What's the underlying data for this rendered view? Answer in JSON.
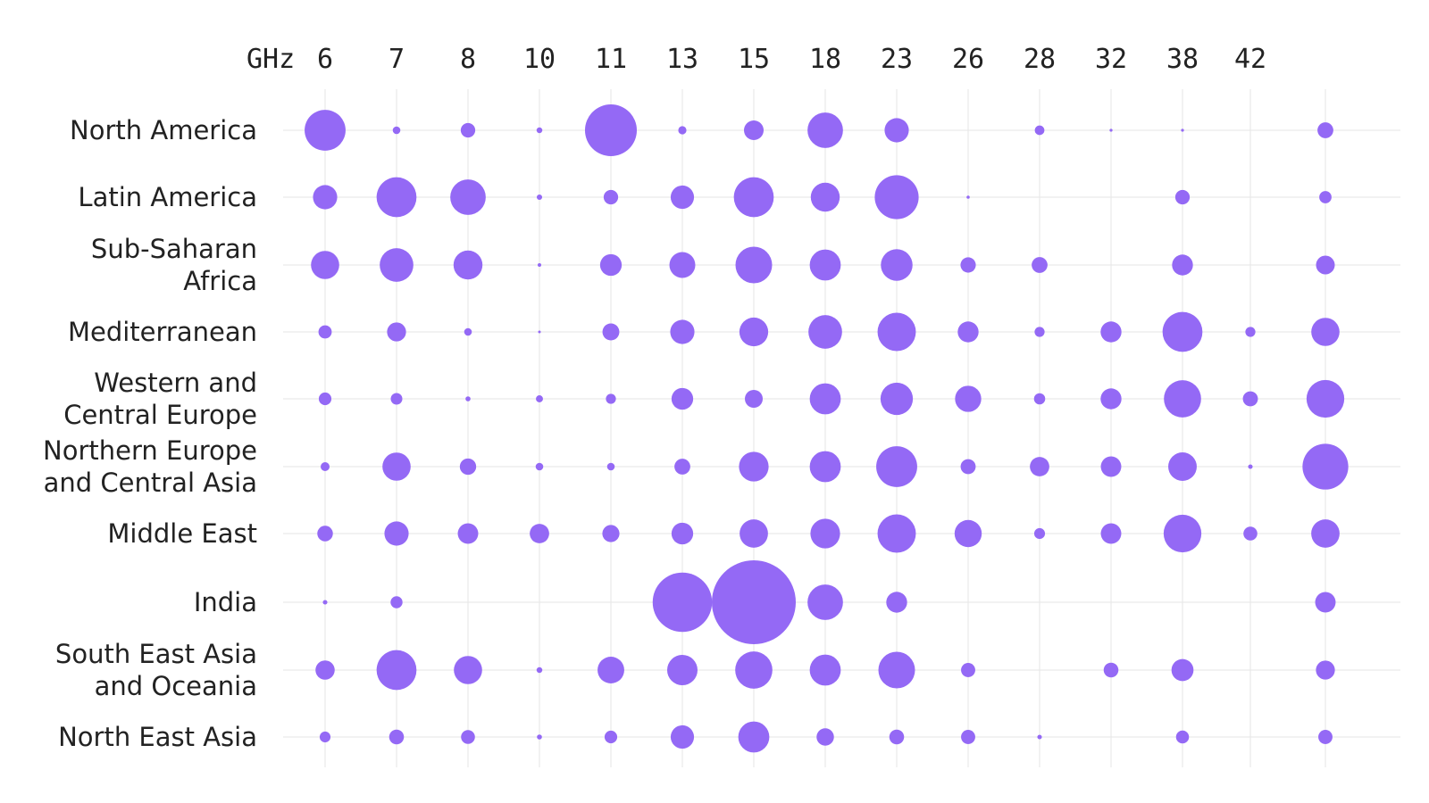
{
  "chart_data": {
    "type": "bubble-matrix",
    "unit_label": "GHz",
    "columns": [
      "6",
      "7",
      "8",
      "10",
      "11",
      "13",
      "15",
      "18",
      "23",
      "26",
      "28",
      "32",
      "38",
      "42",
      ""
    ],
    "rows": [
      {
        "label": [
          "North America"
        ],
        "values": [
          2000,
          70,
          250,
          40,
          3200,
          80,
          460,
          1500,
          700,
          0,
          110,
          10,
          10,
          0,
          300
        ]
      },
      {
        "label": [
          "Latin America"
        ],
        "values": [
          700,
          1900,
          1500,
          35,
          250,
          650,
          1900,
          1000,
          2300,
          12,
          0,
          0,
          250,
          0,
          180
        ]
      },
      {
        "label": [
          "Sub-Saharan",
          "Africa"
        ],
        "values": [
          950,
          1350,
          1000,
          15,
          560,
          800,
          1600,
          1150,
          1200,
          280,
          300,
          0,
          520,
          0,
          420
        ]
      },
      {
        "label": [
          "Mediterranean"
        ],
        "values": [
          210,
          430,
          70,
          2,
          340,
          700,
          990,
          1350,
          1750,
          520,
          120,
          520,
          1900,
          120,
          950
        ]
      },
      {
        "label": [
          "Western and",
          "Central Europe"
        ],
        "values": [
          190,
          160,
          30,
          60,
          120,
          560,
          380,
          1150,
          1250,
          820,
          150,
          520,
          1650,
          270,
          1700
        ]
      },
      {
        "label": [
          "Northern Europe",
          "and Central Asia"
        ],
        "values": [
          95,
          950,
          320,
          70,
          70,
          300,
          1050,
          1150,
          2000,
          270,
          450,
          500,
          970,
          25,
          2500
        ]
      },
      {
        "label": [
          "Middle East"
        ],
        "values": [
          290,
          700,
          500,
          450,
          350,
          560,
          960,
          1050,
          1750,
          880,
          140,
          500,
          1700,
          230,
          960
        ]
      },
      {
        "label": [
          "India"
        ],
        "values": [
          25,
          170,
          0,
          0,
          0,
          4200,
          8400,
          1500,
          520,
          0,
          0,
          0,
          0,
          0,
          500
        ]
      },
      {
        "label": [
          "South East Asia",
          "and Oceania"
        ],
        "values": [
          440,
          1900,
          950,
          40,
          850,
          1100,
          1650,
          1150,
          1600,
          240,
          0,
          260,
          580,
          0,
          430
        ]
      },
      {
        "label": [
          "North East Asia"
        ],
        "values": [
          140,
          260,
          230,
          30,
          190,
          650,
          1150,
          360,
          260,
          240,
          25,
          0,
          200,
          0,
          240
        ]
      }
    ],
    "color": "#9469f5",
    "grid": true,
    "size_scale": "area-proportional (relative units)"
  }
}
